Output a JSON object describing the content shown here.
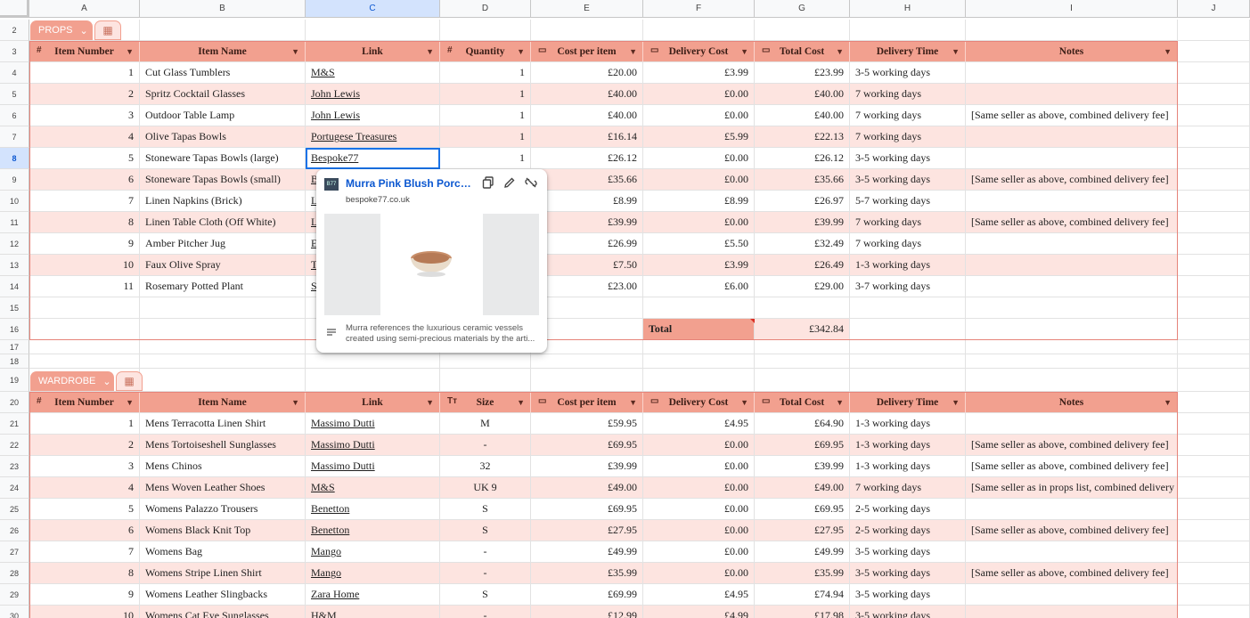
{
  "columns": [
    "A",
    "B",
    "C",
    "D",
    "E",
    "F",
    "G",
    "H",
    "I",
    "J"
  ],
  "props": {
    "chip_label": "PROPS",
    "headers": [
      "Item Number",
      "Item Name",
      "Link",
      "Quantity",
      "Cost per item",
      "Delivery Cost",
      "Total Cost",
      "Delivery Time",
      "Notes"
    ],
    "rows": [
      {
        "num": "1",
        "name": "Cut Glass Tumblers",
        "link": "M&S",
        "qty": "1",
        "cost": "£20.00",
        "del": "£3.99",
        "total": "£23.99",
        "time": "3-5 working days",
        "notes": ""
      },
      {
        "num": "2",
        "name": "Spritz Cocktail Glasses",
        "link": "John Lewis",
        "qty": "1",
        "cost": "£40.00",
        "del": "£0.00",
        "total": "£40.00",
        "time": "7 working days",
        "notes": ""
      },
      {
        "num": "3",
        "name": "Outdoor Table Lamp",
        "link": "John Lewis",
        "qty": "1",
        "cost": "£40.00",
        "del": "£0.00",
        "total": "£40.00",
        "time": "7 working days",
        "notes": "[Same seller as above, combined delivery fee]"
      },
      {
        "num": "4",
        "name": "Olive Tapas Bowls",
        "link": "Portugese Treasures",
        "qty": "1",
        "cost": "£16.14",
        "del": "£5.99",
        "total": "£22.13",
        "time": "7 working days",
        "notes": ""
      },
      {
        "num": "5",
        "name": "Stoneware Tapas Bowls (large)",
        "link": "Bespoke77",
        "qty": "1",
        "cost": "£26.12",
        "del": "£0.00",
        "total": "£26.12",
        "time": "3-5 working days",
        "notes": ""
      },
      {
        "num": "6",
        "name": "Stoneware Tapas Bowls (small)",
        "link": "B",
        "qty": "",
        "cost": "£35.66",
        "del": "£0.00",
        "total": "£35.66",
        "time": "3-5 working days",
        "notes": "[Same seller as above, combined delivery fee]"
      },
      {
        "num": "7",
        "name": "Linen Napkins (Brick)",
        "link": "L",
        "qty": "",
        "cost": "£8.99",
        "del": "£8.99",
        "total": "£26.97",
        "time": "5-7 working days",
        "notes": ""
      },
      {
        "num": "8",
        "name": "Linen Table Cloth (Off White)",
        "link": "L",
        "qty": "",
        "cost": "£39.99",
        "del": "£0.00",
        "total": "£39.99",
        "time": "7 working days",
        "notes": "[Same seller as above, combined delivery fee]"
      },
      {
        "num": "9",
        "name": "Amber Pitcher Jug",
        "link": "E",
        "qty": "",
        "cost": "£26.99",
        "del": "£5.50",
        "total": "£32.49",
        "time": "7 working days",
        "notes": ""
      },
      {
        "num": "10",
        "name": "Faux Olive Spray",
        "link": "T",
        "qty": "",
        "cost": "£7.50",
        "del": "£3.99",
        "total": "£26.49",
        "time": "1-3 working days",
        "notes": ""
      },
      {
        "num": "11",
        "name": "Rosemary Potted Plant",
        "link": "S",
        "qty": "",
        "cost": "£23.00",
        "del": "£6.00",
        "total": "£29.00",
        "time": "3-7 working days",
        "notes": ""
      }
    ],
    "total_label": "Total",
    "total_value": "£342.84"
  },
  "wardrobe": {
    "chip_label": "WARDROBE",
    "headers": [
      "Item Number",
      "Item Name",
      "Link",
      "Size",
      "Cost per item",
      "Delivery Cost",
      "Total Cost",
      "Delivery Time",
      "Notes"
    ],
    "rows": [
      {
        "num": "1",
        "name": "Mens Terracotta Linen Shirt",
        "link": "Massimo Dutti",
        "size": "M",
        "cost": "£59.95",
        "del": "£4.95",
        "total": "£64.90",
        "time": "1-3 working days",
        "notes": ""
      },
      {
        "num": "2",
        "name": "Mens Tortoiseshell Sunglasses",
        "link": "Massimo Dutti",
        "size": "-",
        "cost": "£69.95",
        "del": "£0.00",
        "total": "£69.95",
        "time": "1-3 working days",
        "notes": "[Same seller as above, combined delivery fee]"
      },
      {
        "num": "3",
        "name": "Mens Chinos",
        "link": "Massimo Dutti",
        "size": "32",
        "cost": "£39.99",
        "del": "£0.00",
        "total": "£39.99",
        "time": "1-3 working days",
        "notes": "[Same seller as above, combined delivery fee]"
      },
      {
        "num": "4",
        "name": "Mens Woven Leather Shoes",
        "link": "M&S",
        "size": "UK 9",
        "cost": "£49.00",
        "del": "£0.00",
        "total": "£49.00",
        "time": "7 working days",
        "notes": "[Same seller as in props list, combined delivery"
      },
      {
        "num": "5",
        "name": "Womens Palazzo Trousers",
        "link": "Benetton",
        "size": "S",
        "cost": "£69.95",
        "del": "£0.00",
        "total": "£69.95",
        "time": "2-5 working days",
        "notes": ""
      },
      {
        "num": "6",
        "name": "Womens Black Knit Top",
        "link": "Benetton",
        "size": "S",
        "cost": "£27.95",
        "del": "£0.00",
        "total": "£27.95",
        "time": "2-5 working days",
        "notes": "[Same seller as above, combined delivery fee]"
      },
      {
        "num": "7",
        "name": "Womens Bag",
        "link": "Mango",
        "size": "-",
        "cost": "£49.99",
        "del": "£0.00",
        "total": "£49.99",
        "time": "3-5 working days",
        "notes": ""
      },
      {
        "num": "8",
        "name": "Womens Stripe Linen Shirt",
        "link": "Mango",
        "size": "-",
        "cost": "£35.99",
        "del": "£0.00",
        "total": "£35.99",
        "time": "3-5 working days",
        "notes": "[Same seller as above, combined delivery fee]"
      },
      {
        "num": "9",
        "name": "Womens Leather Slingbacks",
        "link": "Zara Home",
        "size": "S",
        "cost": "£69.99",
        "del": "£4.95",
        "total": "£74.94",
        "time": "3-5 working days",
        "notes": ""
      },
      {
        "num": "10",
        "name": "Womens Cat Eye Sunglasses",
        "link": "H&M",
        "size": "-",
        "cost": "£12.99",
        "del": "£4.99",
        "total": "£17.98",
        "time": "3-5 working days",
        "notes": ""
      }
    ]
  },
  "link_popup": {
    "title": "Murra Pink Blush Porcelai...",
    "domain": "bespoke77.co.uk",
    "favicon_text": "B77",
    "description": "Murra references the luxurious ceramic vessels created using semi-precious materials by the arti...",
    "icons": [
      "copy-icon",
      "edit-icon",
      "unlink-icon"
    ]
  },
  "colors": {
    "header": "#f2a08f",
    "band": "#fde4e0",
    "selection": "#1a73e8"
  }
}
